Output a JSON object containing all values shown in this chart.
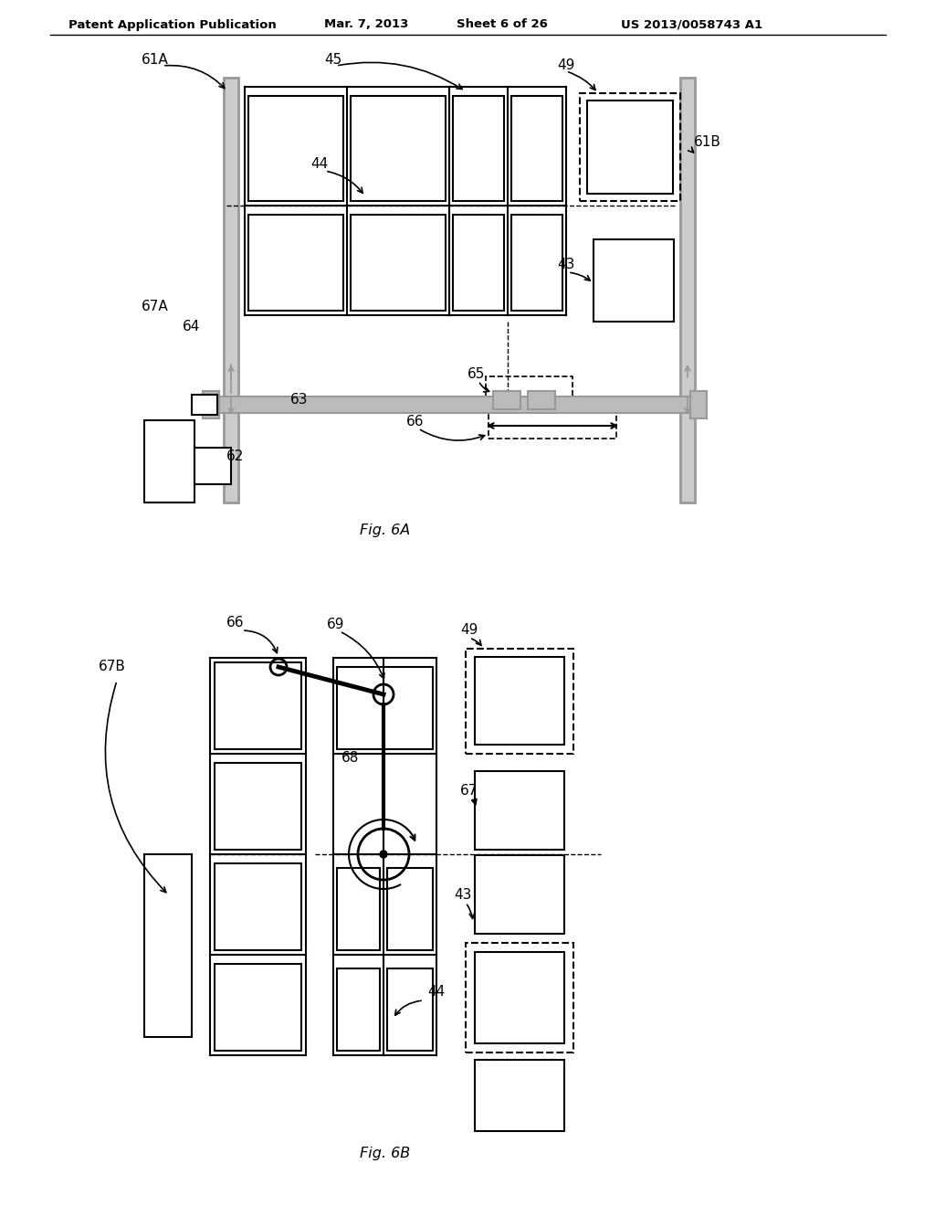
{
  "bg_color": "#ffffff",
  "line_color": "#000000",
  "gray_color": "#999999",
  "header_text": "Patent Application Publication",
  "header_date": "Mar. 7, 2013",
  "header_sheet": "Sheet 6 of 26",
  "header_patent": "US 2013/0058743 A1",
  "fig6a_label": "Fig. 6A",
  "fig6b_label": "Fig. 6B"
}
